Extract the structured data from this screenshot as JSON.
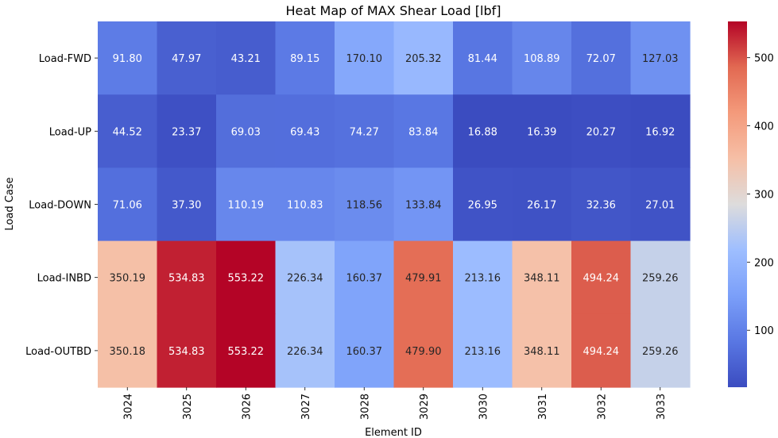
{
  "chart_data": {
    "type": "heatmap",
    "title": "Heat Map of MAX Shear Load [lbf]",
    "xlabel": "Element ID",
    "ylabel": "Load Case",
    "x_categories": [
      "3024",
      "3025",
      "3026",
      "3027",
      "3028",
      "3029",
      "3030",
      "3031",
      "3032",
      "3033"
    ],
    "y_categories": [
      "Load-FWD",
      "Load-UP",
      "Load-DOWN",
      "Load-INBD",
      "Load-OUTBD"
    ],
    "values": [
      [
        91.8,
        47.97,
        43.21,
        89.15,
        170.1,
        205.32,
        81.44,
        108.89,
        72.07,
        127.03
      ],
      [
        44.52,
        23.37,
        69.03,
        69.43,
        74.27,
        83.84,
        16.88,
        16.39,
        20.27,
        16.92
      ],
      [
        71.06,
        37.3,
        110.19,
        110.83,
        118.56,
        133.84,
        26.95,
        26.17,
        32.36,
        27.01
      ],
      [
        350.19,
        534.83,
        553.22,
        226.34,
        160.37,
        479.91,
        213.16,
        348.11,
        494.24,
        259.26
      ],
      [
        350.18,
        534.83,
        553.22,
        226.34,
        160.37,
        479.9,
        213.16,
        348.11,
        494.24,
        259.26
      ]
    ],
    "labels": [
      [
        "91.80",
        "47.97",
        "43.21",
        "89.15",
        "170.10",
        "205.32",
        "81.44",
        "108.89",
        "72.07",
        "127.03"
      ],
      [
        "44.52",
        "23.37",
        "69.03",
        "69.43",
        "74.27",
        "83.84",
        "16.88",
        "16.39",
        "20.27",
        "16.92"
      ],
      [
        "71.06",
        "37.30",
        "110.19",
        "110.83",
        "118.56",
        "133.84",
        "26.95",
        "26.17",
        "32.36",
        "27.01"
      ],
      [
        "350.19",
        "534.83",
        "553.22",
        "226.34",
        "160.37",
        "479.91",
        "213.16",
        "348.11",
        "494.24",
        "259.26"
      ],
      [
        "350.18",
        "534.83",
        "553.22",
        "226.34",
        "160.37",
        "479.90",
        "213.16",
        "348.11",
        "494.24",
        "259.26"
      ]
    ],
    "colormap": "coolwarm",
    "vmin": 16.39,
    "vmax": 553.22,
    "colorbar_ticks": [
      "100",
      "200",
      "300",
      "400",
      "500"
    ],
    "colorbar_tick_values": [
      100,
      200,
      300,
      400,
      500
    ]
  }
}
